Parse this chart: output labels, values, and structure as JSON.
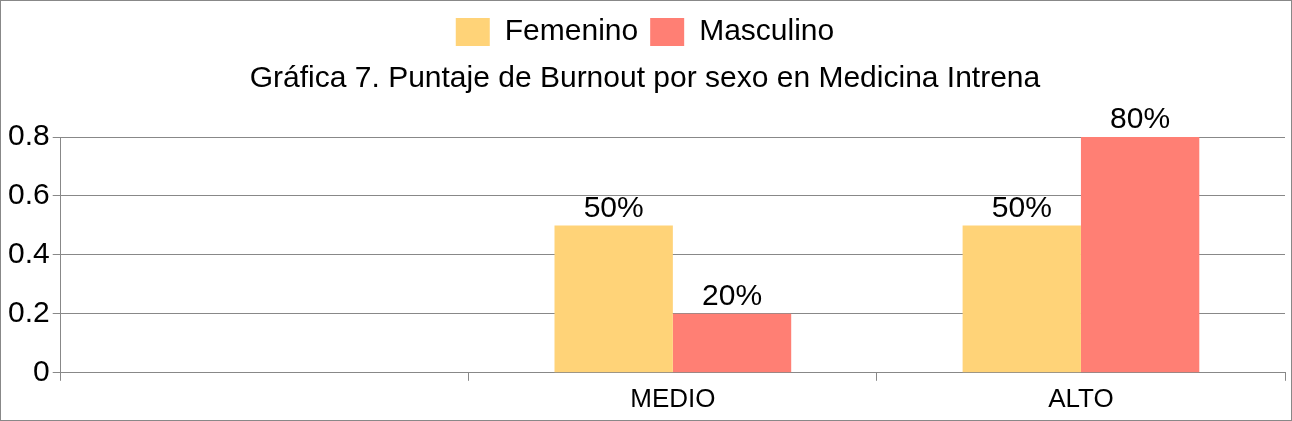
{
  "chart_data": {
    "type": "bar",
    "title": "Gráfica 7. Puntaje de Burnout por sexo en Medicina Intrena",
    "categories": [
      null,
      "MEDIO",
      "ALTO"
    ],
    "series": [
      {
        "name": "Femenino",
        "color": "#ffd378",
        "values": [
          null,
          0.5,
          0.5
        ],
        "value_labels": [
          null,
          "50%",
          "50%"
        ]
      },
      {
        "name": "Masculino",
        "color": "#ff7f74",
        "values": [
          null,
          0.2,
          0.8
        ],
        "value_labels": [
          null,
          "20%",
          "80%"
        ]
      }
    ],
    "ylim": [
      0,
      0.8
    ],
    "yticks": [
      0,
      0.2,
      0.4,
      0.6,
      0.8
    ],
    "grid": "y",
    "legend": "top"
  }
}
